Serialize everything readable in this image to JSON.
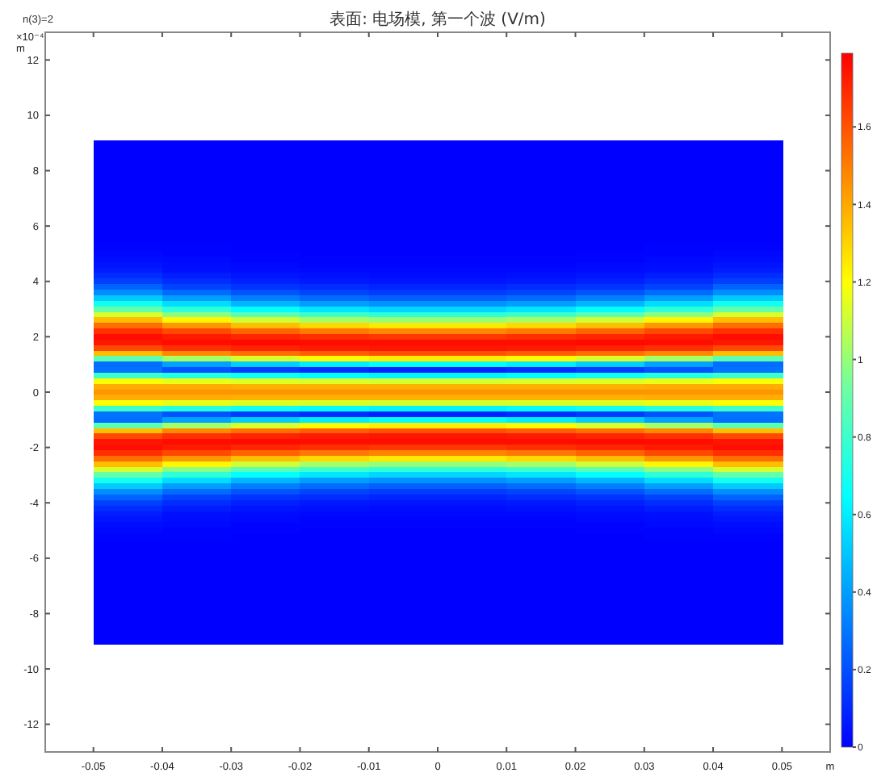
{
  "chart_data": {
    "type": "heatmap",
    "title": "表面: 电场模, 第一个波 (V/m)",
    "annotations": [
      "n(3)=2"
    ],
    "xlabel": "m",
    "ylabel": "×10⁻⁴ m",
    "xlim": [
      -0.057,
      0.057
    ],
    "xticks": [
      -0.05,
      -0.04,
      -0.03,
      -0.02,
      -0.01,
      0,
      0.01,
      0.02,
      0.03,
      0.04,
      0.05
    ],
    "ylim": [
      -13,
      13
    ],
    "yticks": [
      -12,
      -10,
      -8,
      -6,
      -4,
      -2,
      0,
      2,
      4,
      6,
      8,
      10,
      12
    ],
    "clim": [
      0,
      1.79
    ],
    "cticks": [
      0,
      0.2,
      0.4,
      0.6,
      0.8,
      1,
      1.2,
      1.4,
      1.6
    ],
    "x": [
      -0.045,
      -0.035,
      -0.025,
      -0.015,
      -0.005,
      0.005,
      0.015,
      0.025,
      0.035,
      0.045
    ],
    "y": [
      9,
      8.8,
      8.6,
      8.4,
      8.2,
      8,
      7.8,
      7.6,
      7.4,
      7.2,
      7,
      6.8,
      6.6,
      6.4,
      6.2,
      6,
      5.8,
      5.6,
      5.4,
      5.2,
      5,
      4.8,
      4.6,
      4.4,
      4.2,
      4,
      3.8,
      3.6,
      3.4,
      3.2,
      3,
      2.8,
      2.6,
      2.4,
      2.2,
      2,
      1.8,
      1.6,
      1.4,
      1.2,
      1,
      0.8,
      0.6,
      0.4,
      0.2,
      0,
      -0.2,
      -0.4,
      -0.6,
      -0.8,
      -1,
      -1.2,
      -1.4,
      -1.6,
      -1.8,
      -2,
      -2.2,
      -2.4,
      -2.6,
      -2.8,
      -3,
      -3.2,
      -3.4,
      -3.6,
      -3.8,
      -4,
      -4.2,
      -4.4,
      -4.6,
      -4.8,
      -5,
      -5.2,
      -5.4,
      -5.6,
      -5.8,
      -6,
      -6.2,
      -6.4,
      -6.6,
      -6.8,
      -7,
      -7.2,
      -7.4,
      -7.6,
      -7.8,
      -8,
      -8.2,
      -8.4,
      -8.6,
      -8.8,
      -9
    ],
    "cells": [
      [
        0,
        0,
        0,
        0,
        0,
        0,
        0,
        0,
        0,
        0
      ],
      [
        0,
        0,
        0,
        0,
        0,
        0,
        0,
        0,
        0,
        0
      ],
      [
        0,
        0,
        0,
        0,
        0,
        0,
        0,
        0,
        0,
        0
      ],
      [
        0,
        0,
        0,
        0,
        0,
        0,
        0,
        0,
        0,
        0
      ],
      [
        0,
        0,
        0,
        0,
        0,
        0,
        0,
        0,
        0,
        0
      ],
      [
        0,
        0,
        0,
        0,
        0,
        0,
        0,
        0,
        0,
        0
      ],
      [
        0,
        0,
        0,
        0,
        0,
        0,
        0,
        0,
        0,
        0
      ],
      [
        0,
        0,
        0,
        0,
        0,
        0,
        0,
        0,
        0,
        0
      ],
      [
        0,
        0,
        0,
        0,
        0,
        0,
        0,
        0,
        0,
        0
      ],
      [
        0,
        0,
        0,
        0,
        0,
        0,
        0,
        0,
        0,
        0
      ],
      [
        0,
        0,
        0,
        0,
        0,
        0,
        0,
        0,
        0,
        0
      ],
      [
        0,
        0,
        0,
        0,
        0,
        0,
        0,
        0,
        0,
        0
      ],
      [
        0,
        0,
        0,
        0,
        0,
        0,
        0,
        0,
        0,
        0
      ],
      [
        0,
        0,
        0,
        0,
        0,
        0,
        0,
        0,
        0,
        0
      ],
      [
        0,
        0,
        0,
        0,
        0,
        0,
        0,
        0,
        0,
        0
      ],
      [
        0,
        0,
        0,
        0,
        0,
        0,
        0,
        0,
        0,
        0
      ],
      [
        0,
        0,
        0,
        0,
        0,
        0,
        0,
        0,
        0,
        0
      ],
      [
        0,
        0,
        0,
        0,
        0,
        0,
        0,
        0,
        0,
        0
      ],
      [
        0,
        0,
        0,
        0,
        0,
        0,
        0,
        0,
        0,
        0
      ],
      [
        0.01,
        0.01,
        0,
        0,
        0,
        0,
        0,
        0,
        0.01,
        0.01
      ],
      [
        0.02,
        0.01,
        0.01,
        0,
        0,
        0,
        0,
        0.01,
        0.01,
        0.02
      ],
      [
        0.03,
        0.02,
        0.01,
        0.01,
        0.01,
        0.01,
        0.01,
        0.01,
        0.02,
        0.03
      ],
      [
        0.05,
        0.03,
        0.02,
        0.01,
        0.01,
        0.01,
        0.01,
        0.02,
        0.03,
        0.05
      ],
      [
        0.07,
        0.04,
        0.03,
        0.02,
        0.02,
        0.02,
        0.02,
        0.03,
        0.04,
        0.07
      ],
      [
        0.11,
        0.07,
        0.05,
        0.04,
        0.03,
        0.03,
        0.04,
        0.05,
        0.07,
        0.11
      ],
      [
        0.16,
        0.11,
        0.08,
        0.06,
        0.05,
        0.05,
        0.06,
        0.08,
        0.11,
        0.16
      ],
      [
        0.25,
        0.17,
        0.13,
        0.11,
        0.09,
        0.09,
        0.11,
        0.13,
        0.17,
        0.25
      ],
      [
        0.36,
        0.27,
        0.21,
        0.17,
        0.15,
        0.15,
        0.17,
        0.21,
        0.27,
        0.36
      ],
      [
        0.51,
        0.4,
        0.32,
        0.27,
        0.24,
        0.24,
        0.27,
        0.32,
        0.4,
        0.51
      ],
      [
        0.69,
        0.56,
        0.46,
        0.4,
        0.37,
        0.37,
        0.4,
        0.46,
        0.56,
        0.69
      ],
      [
        0.9,
        0.76,
        0.65,
        0.58,
        0.54,
        0.54,
        0.58,
        0.65,
        0.76,
        0.9
      ],
      [
        1.12,
        0.98,
        0.87,
        0.8,
        0.76,
        0.76,
        0.8,
        0.87,
        0.98,
        1.12
      ],
      [
        1.35,
        1.22,
        1.11,
        1.03,
        1,
        1,
        1.03,
        1.11,
        1.22,
        1.35
      ],
      [
        1.54,
        1.44,
        1.35,
        1.29,
        1.25,
        1.25,
        1.29,
        1.35,
        1.44,
        1.54
      ],
      [
        1.68,
        1.62,
        1.56,
        1.51,
        1.48,
        1.48,
        1.51,
        1.56,
        1.62,
        1.68
      ],
      [
        1.76,
        1.73,
        1.7,
        1.68,
        1.66,
        1.66,
        1.68,
        1.7,
        1.73,
        1.76
      ],
      [
        1.74,
        1.76,
        1.77,
        1.76,
        1.76,
        1.76,
        1.76,
        1.77,
        1.76,
        1.74
      ],
      [
        1.62,
        1.68,
        1.71,
        1.73,
        1.74,
        1.74,
        1.73,
        1.71,
        1.68,
        1.62
      ],
      [
        1.35,
        1.47,
        1.53,
        1.57,
        1.6,
        1.6,
        1.57,
        1.53,
        1.47,
        1.35
      ],
      [
        0.88,
        1.03,
        1.13,
        1.21,
        1.24,
        1.24,
        1.21,
        1.13,
        1.03,
        0.88
      ],
      [
        0.28,
        0.41,
        0.52,
        0.6,
        0.64,
        0.64,
        0.6,
        0.52,
        0.41,
        0.28
      ],
      [
        0.29,
        0.21,
        0.15,
        0.11,
        0.08,
        0.08,
        0.11,
        0.15,
        0.21,
        0.29
      ],
      [
        0.8,
        0.74,
        0.68,
        0.64,
        0.62,
        0.62,
        0.64,
        0.68,
        0.74,
        0.8
      ],
      [
        1.19,
        1.16,
        1.14,
        1.13,
        1.12,
        1.12,
        1.13,
        1.14,
        1.16,
        1.19
      ],
      [
        1.39,
        1.39,
        1.38,
        1.38,
        1.38,
        1.38,
        1.38,
        1.38,
        1.39,
        1.39
      ],
      [
        1.45,
        1.45,
        1.45,
        1.45,
        1.45,
        1.45,
        1.45,
        1.45,
        1.45,
        1.45
      ],
      [
        1.39,
        1.39,
        1.38,
        1.38,
        1.38,
        1.38,
        1.38,
        1.38,
        1.39,
        1.39
      ],
      [
        1.19,
        1.16,
        1.14,
        1.13,
        1.12,
        1.12,
        1.13,
        1.14,
        1.16,
        1.19
      ],
      [
        0.8,
        0.74,
        0.68,
        0.64,
        0.62,
        0.62,
        0.64,
        0.68,
        0.74,
        0.8
      ],
      [
        0.29,
        0.21,
        0.15,
        0.11,
        0.08,
        0.08,
        0.11,
        0.15,
        0.21,
        0.29
      ],
      [
        0.28,
        0.41,
        0.52,
        0.6,
        0.64,
        0.64,
        0.6,
        0.52,
        0.41,
        0.28
      ],
      [
        0.88,
        1.03,
        1.13,
        1.21,
        1.24,
        1.24,
        1.21,
        1.13,
        1.03,
        0.88
      ],
      [
        1.35,
        1.47,
        1.53,
        1.57,
        1.6,
        1.6,
        1.57,
        1.53,
        1.47,
        1.35
      ],
      [
        1.62,
        1.68,
        1.71,
        1.73,
        1.74,
        1.74,
        1.73,
        1.71,
        1.68,
        1.62
      ],
      [
        1.74,
        1.76,
        1.77,
        1.76,
        1.76,
        1.76,
        1.76,
        1.77,
        1.76,
        1.74
      ],
      [
        1.76,
        1.73,
        1.7,
        1.68,
        1.66,
        1.66,
        1.68,
        1.7,
        1.73,
        1.76
      ],
      [
        1.68,
        1.62,
        1.56,
        1.51,
        1.48,
        1.48,
        1.51,
        1.56,
        1.62,
        1.68
      ],
      [
        1.54,
        1.44,
        1.35,
        1.29,
        1.25,
        1.25,
        1.29,
        1.35,
        1.44,
        1.54
      ],
      [
        1.35,
        1.22,
        1.11,
        1.03,
        1,
        1,
        1.03,
        1.11,
        1.22,
        1.35
      ],
      [
        1.12,
        0.98,
        0.87,
        0.8,
        0.76,
        0.76,
        0.8,
        0.87,
        0.98,
        1.12
      ],
      [
        0.9,
        0.76,
        0.65,
        0.58,
        0.54,
        0.54,
        0.58,
        0.65,
        0.76,
        0.9
      ],
      [
        0.69,
        0.56,
        0.46,
        0.4,
        0.37,
        0.37,
        0.4,
        0.46,
        0.56,
        0.69
      ],
      [
        0.51,
        0.4,
        0.32,
        0.27,
        0.24,
        0.24,
        0.27,
        0.32,
        0.4,
        0.51
      ],
      [
        0.36,
        0.27,
        0.21,
        0.17,
        0.15,
        0.15,
        0.17,
        0.21,
        0.27,
        0.36
      ],
      [
        0.25,
        0.17,
        0.13,
        0.11,
        0.09,
        0.09,
        0.11,
        0.13,
        0.17,
        0.25
      ],
      [
        0.16,
        0.11,
        0.08,
        0.06,
        0.05,
        0.05,
        0.06,
        0.08,
        0.11,
        0.16
      ],
      [
        0.11,
        0.07,
        0.05,
        0.04,
        0.03,
        0.03,
        0.04,
        0.05,
        0.07,
        0.11
      ],
      [
        0.07,
        0.04,
        0.03,
        0.02,
        0.02,
        0.02,
        0.02,
        0.03,
        0.04,
        0.07
      ],
      [
        0.05,
        0.03,
        0.02,
        0.01,
        0.01,
        0.01,
        0.01,
        0.02,
        0.03,
        0.05
      ],
      [
        0.03,
        0.02,
        0.01,
        0.01,
        0.01,
        0.01,
        0.01,
        0.01,
        0.02,
        0.03
      ],
      [
        0.02,
        0.01,
        0.01,
        0,
        0,
        0,
        0,
        0.01,
        0.01,
        0.02
      ],
      [
        0.01,
        0.01,
        0,
        0,
        0,
        0,
        0,
        0,
        0.01,
        0.01
      ],
      [
        0,
        0,
        0,
        0,
        0,
        0,
        0,
        0,
        0,
        0
      ],
      [
        0,
        0,
        0,
        0,
        0,
        0,
        0,
        0,
        0,
        0
      ],
      [
        0,
        0,
        0,
        0,
        0,
        0,
        0,
        0,
        0,
        0
      ],
      [
        0,
        0,
        0,
        0,
        0,
        0,
        0,
        0,
        0,
        0
      ],
      [
        0,
        0,
        0,
        0,
        0,
        0,
        0,
        0,
        0,
        0
      ],
      [
        0,
        0,
        0,
        0,
        0,
        0,
        0,
        0,
        0,
        0
      ],
      [
        0,
        0,
        0,
        0,
        0,
        0,
        0,
        0,
        0,
        0
      ],
      [
        0,
        0,
        0,
        0,
        0,
        0,
        0,
        0,
        0,
        0
      ],
      [
        0,
        0,
        0,
        0,
        0,
        0,
        0,
        0,
        0,
        0
      ],
      [
        0,
        0,
        0,
        0,
        0,
        0,
        0,
        0,
        0,
        0
      ],
      [
        0,
        0,
        0,
        0,
        0,
        0,
        0,
        0,
        0,
        0
      ],
      [
        0,
        0,
        0,
        0,
        0,
        0,
        0,
        0,
        0,
        0
      ],
      [
        0,
        0,
        0,
        0,
        0,
        0,
        0,
        0,
        0,
        0
      ],
      [
        0,
        0,
        0,
        0,
        0,
        0,
        0,
        0,
        0,
        0
      ],
      [
        0,
        0,
        0,
        0,
        0,
        0,
        0,
        0,
        0,
        0
      ],
      [
        0,
        0,
        0,
        0,
        0,
        0,
        0,
        0,
        0,
        0
      ],
      [
        0,
        0,
        0,
        0,
        0,
        0,
        0,
        0,
        0,
        0
      ],
      [
        0,
        0,
        0,
        0,
        0,
        0,
        0,
        0,
        0,
        0
      ],
      [
        0,
        0,
        0,
        0,
        0,
        0,
        0,
        0,
        0,
        0
      ]
    ]
  }
}
